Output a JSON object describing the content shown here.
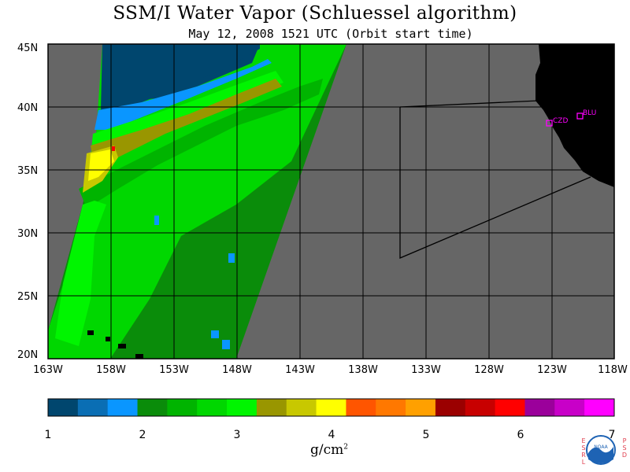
{
  "title": "SSM/I Water Vapor (Schluessel algorithm)",
  "subtitle": "May 12, 2008  1521 UTC  (Orbit start time)",
  "lat_labels": [
    "45N",
    "40N",
    "35N",
    "30N",
    "25N",
    "20N"
  ],
  "lon_labels": [
    "163W",
    "158W",
    "153W",
    "148W",
    "143W",
    "138W",
    "133W",
    "128W",
    "123W",
    "118W"
  ],
  "stations": [
    {
      "label": "CZD"
    },
    {
      "label": "BLU"
    }
  ],
  "colorbar": {
    "ticks": [
      "1",
      "2",
      "3",
      "4",
      "5",
      "6",
      "7"
    ],
    "unit": "g/cm",
    "unit_sup": "2",
    "colors": [
      "#00466e",
      "#0a6eb4",
      "#0a96ff",
      "#0a8c0a",
      "#00b400",
      "#00d700",
      "#00f500",
      "#999600",
      "#c8c800",
      "#ffff00",
      "#ff5500",
      "#ff7800",
      "#ffa000",
      "#9b0000",
      "#c80000",
      "#ff0000",
      "#9b009b",
      "#c800c8",
      "#ff00ff"
    ]
  },
  "logo": {
    "name": "NOAA",
    "left_text": "ESRL",
    "right_text": "PSD"
  },
  "colors": {
    "land_swath_gap": "#666666",
    "land": "#000000",
    "station_marker": "#ff00ff"
  }
}
